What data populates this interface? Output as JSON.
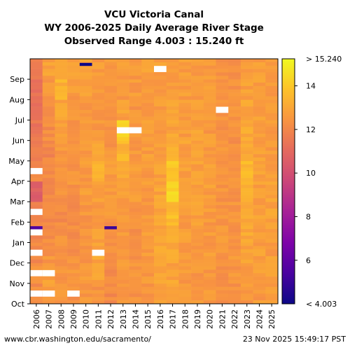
{
  "chart_data": {
    "type": "heatmap",
    "title_lines": [
      "VCU Victoria Canal",
      "WY 2006-2025 Daily Average River Stage",
      "Observed Range 4.003 : 15.240 ft"
    ],
    "x_categories": [
      "2006",
      "2007",
      "2008",
      "2009",
      "2010",
      "2011",
      "2012",
      "2013",
      "2014",
      "2015",
      "2016",
      "2017",
      "2018",
      "2019",
      "2020",
      "2021",
      "2022",
      "2023",
      "2024",
      "2025"
    ],
    "y_categories": [
      "Oct",
      "Nov",
      "Dec",
      "Jan",
      "Feb",
      "Mar",
      "Apr",
      "May",
      "Jun",
      "Jul",
      "Aug",
      "Sep"
    ],
    "colorbar": {
      "min": 4.003,
      "max": 15.24,
      "ticks": [
        6,
        8,
        10,
        12,
        14
      ],
      "min_label": "< 4.003",
      "max_label": "> 15.240",
      "colormap": "plasma"
    },
    "monthly_mean_stage_ft": [
      [
        12.2,
        12.4,
        12.1,
        12.0,
        11.6,
        10.6,
        12.0,
        11.8,
        11.4,
        11.3,
        11.2,
        11.5
      ],
      [
        12.6,
        12.8,
        12.4,
        12.2,
        12.0,
        12.2,
        12.1,
        12.0,
        12.2,
        12.3,
        12.6,
        12.8
      ],
      [
        12.4,
        12.4,
        12.3,
        12.3,
        12.1,
        12.3,
        12.5,
        12.6,
        12.8,
        12.9,
        13.3,
        13.3
      ],
      [
        12.3,
        12.4,
        12.3,
        12.2,
        12.2,
        12.4,
        12.4,
        12.3,
        12.3,
        12.4,
        12.6,
        12.7
      ],
      [
        12.5,
        12.6,
        12.4,
        12.4,
        12.5,
        12.7,
        12.6,
        12.6,
        12.5,
        12.6,
        12.8,
        12.8
      ],
      [
        12.4,
        12.8,
        12.9,
        12.7,
        12.7,
        12.9,
        13.3,
        12.8,
        12.6,
        12.6,
        12.7,
        12.7
      ],
      [
        12.1,
        12.2,
        12.3,
        12.2,
        12.5,
        12.6,
        12.7,
        12.5,
        12.4,
        12.4,
        12.5,
        12.5
      ],
      [
        12.6,
        12.6,
        12.7,
        12.6,
        12.7,
        12.7,
        12.9,
        13.4,
        14.2,
        12.8,
        12.6,
        12.6
      ],
      [
        12.4,
        12.4,
        12.4,
        12.3,
        12.5,
        12.6,
        12.6,
        12.6,
        12.6,
        12.5,
        12.6,
        12.6
      ],
      [
        12.5,
        12.5,
        12.6,
        12.6,
        12.6,
        12.6,
        12.6,
        12.7,
        12.7,
        12.7,
        12.7,
        12.8
      ],
      [
        12.7,
        12.8,
        12.9,
        12.9,
        13.0,
        12.9,
        12.8,
        12.8,
        12.7,
        12.7,
        12.7,
        12.7
      ],
      [
        12.9,
        12.9,
        13.1,
        13.4,
        13.6,
        14.3,
        13.9,
        13.2,
        12.9,
        12.9,
        12.8,
        12.8
      ],
      [
        12.6,
        12.6,
        12.7,
        12.7,
        12.7,
        12.8,
        12.8,
        12.8,
        12.7,
        12.7,
        12.7,
        12.7
      ],
      [
        12.5,
        12.5,
        12.6,
        12.8,
        12.8,
        12.8,
        12.8,
        12.9,
        12.8,
        12.7,
        12.6,
        12.6
      ],
      [
        12.6,
        12.6,
        12.6,
        12.6,
        12.6,
        12.7,
        12.7,
        12.7,
        12.6,
        12.6,
        12.6,
        12.6
      ],
      [
        12.4,
        12.4,
        12.5,
        12.5,
        12.4,
        12.4,
        12.4,
        12.4,
        12.4,
        12.4,
        12.4,
        12.4
      ],
      [
        12.3,
        12.5,
        12.5,
        12.4,
        12.4,
        12.3,
        12.3,
        12.3,
        12.3,
        12.4,
        12.4,
        12.4
      ],
      [
        12.6,
        12.6,
        12.8,
        13.0,
        13.1,
        13.2,
        13.5,
        13.0,
        13.0,
        12.9,
        12.8,
        12.8
      ],
      [
        12.6,
        12.7,
        12.7,
        12.7,
        12.8,
        12.8,
        12.8,
        12.8,
        12.7,
        12.7,
        12.7,
        12.7
      ],
      [
        12.7,
        12.7,
        12.7,
        12.7,
        12.8,
        12.8,
        12.8,
        12.7,
        12.7,
        12.7,
        12.7,
        12.7
      ]
    ],
    "missing_data_years_months": [
      [
        "2006",
        "Oct"
      ],
      [
        "2006",
        "Nov"
      ],
      [
        "2006",
        "Dec"
      ],
      [
        "2006",
        "Jan"
      ],
      [
        "2006",
        "Feb"
      ],
      [
        "2006",
        "Apr"
      ],
      [
        "2007",
        "Oct"
      ],
      [
        "2007",
        "Nov"
      ],
      [
        "2009",
        "Oct"
      ],
      [
        "2011",
        "Dec"
      ],
      [
        "2013",
        "Jun"
      ],
      [
        "2014",
        "Jun"
      ],
      [
        "2016",
        "Sep"
      ],
      [
        "2021",
        "Jul"
      ]
    ],
    "low_value_events": [
      [
        "2010",
        "Sep",
        4.0
      ],
      [
        "2012",
        "Jan",
        5.0
      ],
      [
        "2006",
        "Jan",
        5.5
      ]
    ]
  },
  "footer": {
    "source": "www.cbr.washington.edu/sacramento/",
    "timestamp": "23 Nov 2025 15:49:17 PST"
  }
}
